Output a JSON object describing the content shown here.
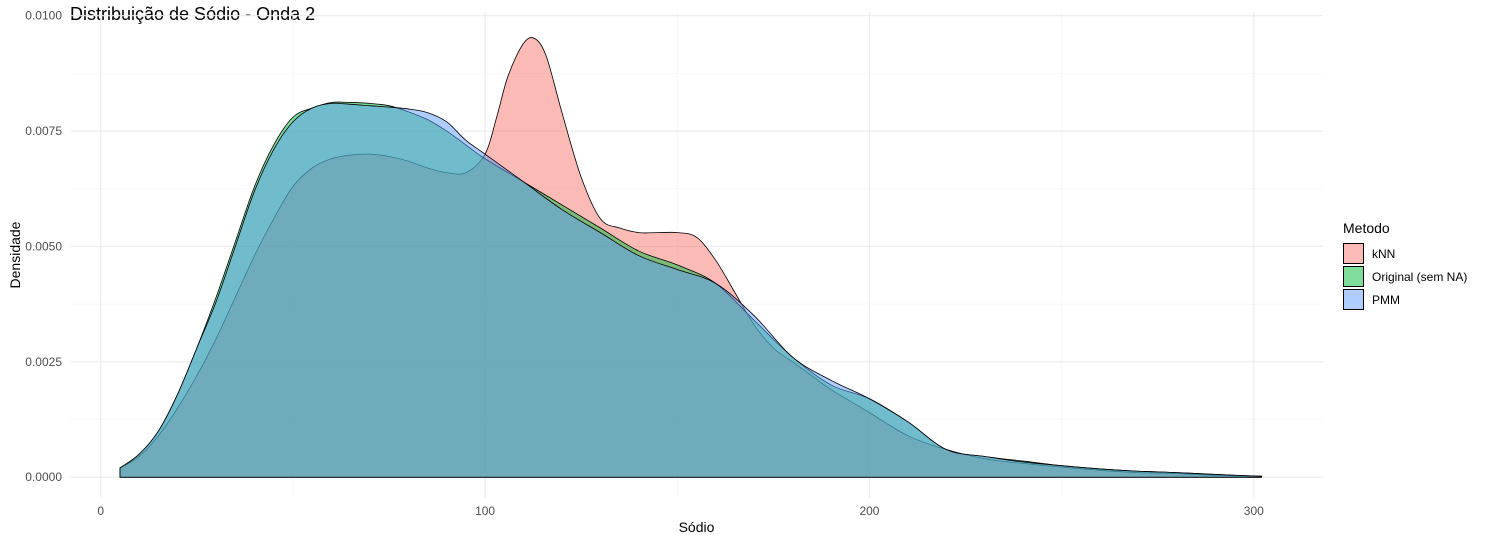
{
  "chart_data": {
    "type": "area",
    "title": "Distribuição de Sódio - Onda 2",
    "xlabel": "Sódio",
    "ylabel": "Densidade",
    "xlim": [
      -8,
      318
    ],
    "ylim": [
      -0.00045,
      0.01008
    ],
    "x_ticks": [
      0,
      100,
      200,
      300
    ],
    "x_tick_labels": [
      "0",
      "100",
      "200",
      "300"
    ],
    "y_ticks": [
      0,
      0.0025,
      0.005,
      0.0075,
      0.01
    ],
    "y_tick_labels": [
      "0.0000",
      "0.0025",
      "0.0050",
      "0.0075",
      "0.0100"
    ],
    "grid": true,
    "legend": {
      "title": "Metodo",
      "position": "right"
    },
    "series": [
      {
        "name": "kNN",
        "color": "#F8766D",
        "x": [
          5,
          10,
          15,
          20,
          25,
          30,
          35,
          40,
          45,
          50,
          55,
          60,
          65,
          70,
          75,
          80,
          85,
          90,
          95,
          100,
          103,
          106,
          110,
          113,
          116,
          120,
          125,
          130,
          135,
          140,
          145,
          150,
          155,
          160,
          165,
          170,
          175,
          180,
          185,
          190,
          200,
          210,
          220,
          230,
          240,
          250,
          260,
          270,
          280,
          290,
          302
        ],
        "y": [
          0.0002,
          0.00045,
          0.0009,
          0.0015,
          0.0022,
          0.003,
          0.0039,
          0.0048,
          0.0056,
          0.0063,
          0.0067,
          0.0069,
          0.00698,
          0.007,
          0.00695,
          0.00685,
          0.0067,
          0.0066,
          0.0066,
          0.007,
          0.0078,
          0.0087,
          0.0094,
          0.0095,
          0.0091,
          0.0079,
          0.0065,
          0.0056,
          0.0054,
          0.0053,
          0.0053,
          0.0053,
          0.0052,
          0.0047,
          0.004,
          0.0033,
          0.0028,
          0.0025,
          0.0022,
          0.0019,
          0.0014,
          0.0009,
          0.0006,
          0.0004,
          0.0003,
          0.00022,
          0.00015,
          0.0001,
          8e-05,
          4e-05,
          2e-05
        ]
      },
      {
        "name": "Original (sem NA)",
        "color": "#00BA38",
        "x": [
          5,
          10,
          15,
          20,
          25,
          30,
          35,
          40,
          45,
          50,
          55,
          60,
          65,
          70,
          75,
          80,
          85,
          90,
          95,
          100,
          110,
          120,
          130,
          140,
          150,
          160,
          170,
          180,
          190,
          200,
          210,
          220,
          230,
          240,
          250,
          260,
          270,
          280,
          290,
          302
        ],
        "y": [
          0.0002,
          0.0005,
          0.001,
          0.0018,
          0.0028,
          0.0039,
          0.0051,
          0.0063,
          0.0072,
          0.0078,
          0.008,
          0.00812,
          0.00812,
          0.0081,
          0.00805,
          0.00792,
          0.00775,
          0.0075,
          0.0072,
          0.0069,
          0.0064,
          0.0059,
          0.0054,
          0.0049,
          0.0046,
          0.0042,
          0.0034,
          0.0026,
          0.002,
          0.0017,
          0.0012,
          0.0006,
          0.00045,
          0.00035,
          0.00025,
          0.00018,
          0.00013,
          0.0001,
          6e-05,
          2e-05
        ]
      },
      {
        "name": "PMM",
        "color": "#619CFF",
        "x": [
          5,
          10,
          15,
          20,
          25,
          30,
          35,
          40,
          45,
          50,
          55,
          60,
          65,
          70,
          75,
          80,
          85,
          90,
          95,
          100,
          110,
          120,
          130,
          140,
          150,
          160,
          170,
          180,
          190,
          200,
          210,
          220,
          230,
          240,
          250,
          260,
          270,
          280,
          290,
          302
        ],
        "y": [
          0.0002,
          0.0005,
          0.001,
          0.0018,
          0.0028,
          0.0038,
          0.005,
          0.0062,
          0.0071,
          0.0077,
          0.008,
          0.0081,
          0.00808,
          0.00805,
          0.00802,
          0.00798,
          0.0079,
          0.0077,
          0.0073,
          0.007,
          0.0064,
          0.0058,
          0.0053,
          0.0048,
          0.0045,
          0.0042,
          0.0035,
          0.0026,
          0.0021,
          0.0017,
          0.0012,
          0.0006,
          0.00045,
          0.00033,
          0.00025,
          0.00018,
          0.00013,
          0.0001,
          6e-05,
          2e-05
        ]
      }
    ]
  }
}
